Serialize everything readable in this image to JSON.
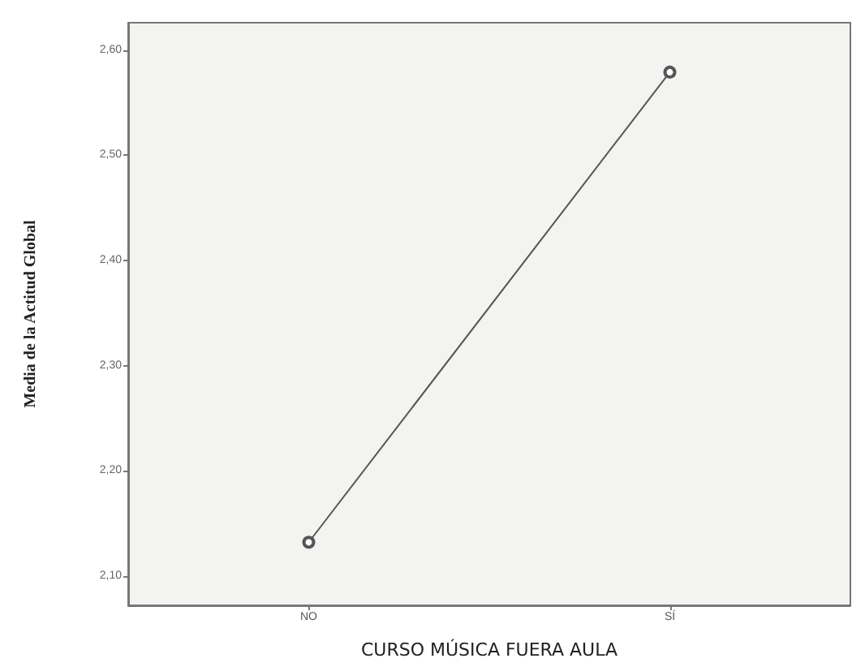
{
  "chart_data": {
    "type": "line",
    "xlabel": "CURSO MÚSICA FUERA AULA",
    "ylabel": "Media de la Actitud Global",
    "categories": [
      "NO",
      "SÍ"
    ],
    "series": [
      {
        "color": "#555555",
        "values": [
          2.132,
          2.579
        ]
      }
    ],
    "ylim": [
      2.072,
      2.626
    ],
    "yticks": [
      {
        "value": 2.1,
        "label": "2,10"
      },
      {
        "value": 2.2,
        "label": "2,20"
      },
      {
        "value": 2.3,
        "label": "2,30"
      },
      {
        "value": 2.4,
        "label": "2,40"
      },
      {
        "value": 2.5,
        "label": "2,50"
      },
      {
        "value": 2.6,
        "label": "2,60"
      }
    ],
    "marker": "circle",
    "line_style": "solid"
  }
}
